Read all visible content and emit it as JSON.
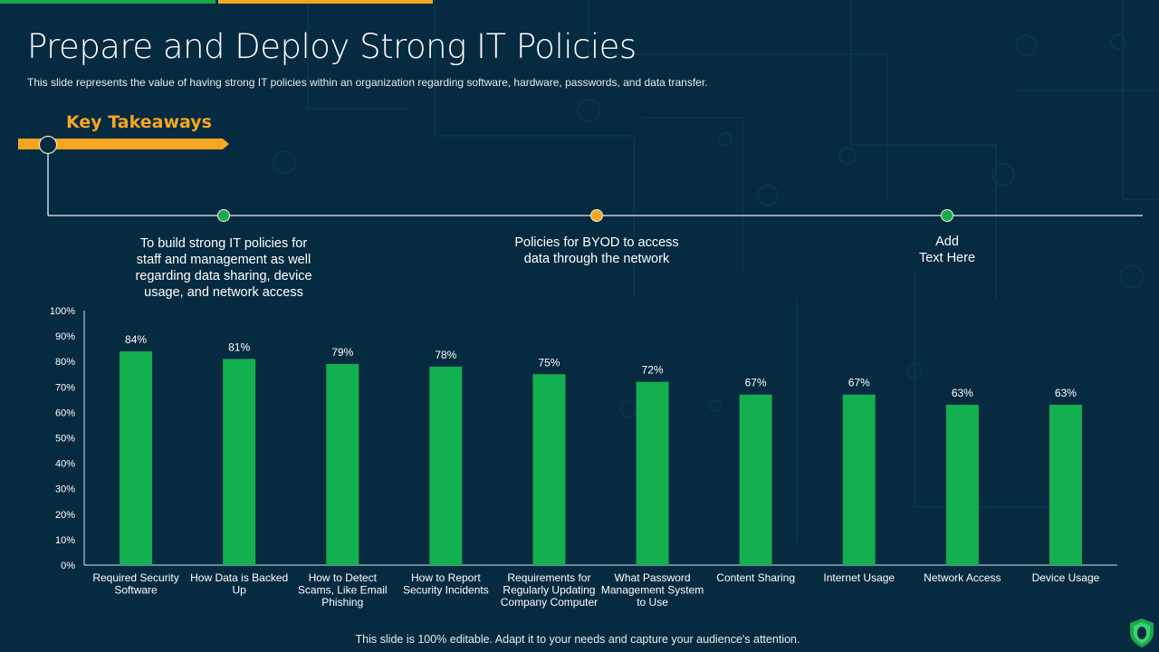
{
  "header": {
    "title": "Prepare and Deploy Strong IT Policies",
    "subtitle": "This slide represents the value of having  strong IT  policies within an organization regarding software,  hardware,  passwords,  and data transfer."
  },
  "takeaways": {
    "label": "Key Takeaways",
    "points": [
      {
        "text": "To build strong IT policies for staff and management as well regarding data sharing, device usage, and network access",
        "lines": [
          "To build strong IT policies for",
          "staff and management as well",
          "regarding data sharing, device",
          "usage, and network access"
        ],
        "dot_color": "#1aa84b"
      },
      {
        "text": "Policies for BYOD to access data through the network",
        "lines": [
          "Policies for BYOD to access",
          "data through the network"
        ],
        "dot_color": "#f5a623"
      },
      {
        "text": "Add Text Here",
        "lines": [
          "Add",
          "Text Here"
        ],
        "dot_color": "#1aa84b"
      }
    ]
  },
  "colors": {
    "background": "#062a40",
    "accent_green": "#12b04f",
    "accent_orange": "#f5a623"
  },
  "chart_data": {
    "type": "bar",
    "title": "",
    "xlabel": "",
    "ylabel": "",
    "ylim": [
      0,
      100
    ],
    "yticks": [
      "0%",
      "10%",
      "20%",
      "30%",
      "40%",
      "50%",
      "60%",
      "70%",
      "80%",
      "90%",
      "100%"
    ],
    "grid": false,
    "legend": "none",
    "categories": [
      "Required Security Software",
      "How Data is Backed Up",
      "How to Detect Scams, Like Email Phishing",
      "How to Report Security Incidents",
      "Requirements for Regularly Updating Company Computer",
      "What Password Management System to Use",
      "Content Sharing",
      "Internet Usage",
      "Network Access",
      "Device Usage"
    ],
    "category_lines": [
      [
        "Required Security",
        "Software"
      ],
      [
        "How Data is Backed",
        "Up"
      ],
      [
        "How to Detect",
        "Scams, Like Email",
        "Phishing"
      ],
      [
        "How to Report",
        "Security Incidents"
      ],
      [
        "Requirements for",
        "Regularly Updating",
        "Company Computer"
      ],
      [
        "What Password",
        "Management System",
        "to Use"
      ],
      [
        "Content Sharing"
      ],
      [
        "Internet Usage"
      ],
      [
        "Network Access"
      ],
      [
        "Device Usage"
      ]
    ],
    "values": [
      84,
      81,
      79,
      78,
      75,
      72,
      67,
      67,
      63,
      63
    ],
    "data_labels": [
      "84%",
      "81%",
      "79%",
      "78%",
      "75%",
      "72%",
      "67%",
      "67%",
      "63%",
      "63%"
    ],
    "bar_color": "#12b04f"
  },
  "footer": {
    "note": "This slide is 100% editable. Adapt it to your needs and capture your audience's attention.",
    "logo_icon": "shield-lock-icon"
  }
}
